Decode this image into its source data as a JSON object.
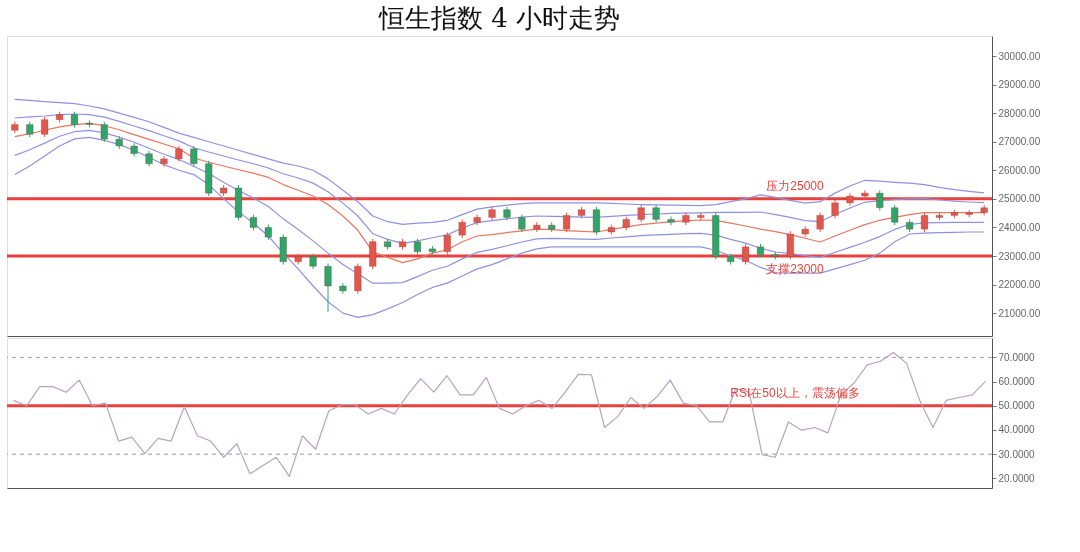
{
  "chart_data": [
    {
      "type": "candlestick",
      "title": "恒生指数 4 小时走势",
      "categories": [
        null,
        null,
        null,
        null,
        null,
        null,
        null,
        null,
        null,
        null,
        null,
        null,
        null,
        null,
        null,
        null,
        null,
        null,
        null,
        null,
        null,
        null,
        null,
        null,
        null,
        null,
        null,
        null,
        null,
        null,
        null,
        null,
        null,
        null,
        null,
        null,
        null,
        null,
        null,
        null,
        null,
        null,
        null,
        null,
        null,
        null,
        null,
        null,
        null,
        null,
        null,
        null,
        null,
        null,
        null,
        null,
        null,
        null,
        null,
        null,
        null,
        null,
        null,
        null,
        null,
        null
      ],
      "ohlc": [
        [
          27400,
          27700,
          27300,
          27600
        ],
        [
          27600,
          27700,
          27160,
          27260
        ],
        [
          27260,
          27870,
          27160,
          27770
        ],
        [
          27770,
          28050,
          27670,
          27950
        ],
        [
          27950,
          28050,
          27500,
          27600
        ],
        [
          27650,
          27750,
          27500,
          27600
        ],
        [
          27600,
          27700,
          26990,
          27090
        ],
        [
          27090,
          27190,
          26750,
          26850
        ],
        [
          26850,
          26950,
          26480,
          26580
        ],
        [
          26580,
          26680,
          26130,
          26230
        ],
        [
          26230,
          26500,
          26130,
          26400
        ],
        [
          26400,
          26850,
          26300,
          26750
        ],
        [
          26750,
          26850,
          26130,
          26230
        ],
        [
          26230,
          26330,
          25100,
          25200
        ],
        [
          25200,
          25480,
          25100,
          25380
        ],
        [
          25380,
          25480,
          24250,
          24350
        ],
        [
          24350,
          24450,
          23900,
          24000
        ],
        [
          24000,
          24100,
          23560,
          23660
        ],
        [
          23660,
          23760,
          22700,
          22800
        ],
        [
          22800,
          23080,
          22700,
          22980
        ],
        [
          22980,
          23080,
          22540,
          22640
        ],
        [
          22640,
          22740,
          21050,
          21950
        ],
        [
          21950,
          22050,
          21680,
          21780
        ],
        [
          21780,
          22740,
          21680,
          22640
        ],
        [
          22640,
          23600,
          22540,
          23500
        ],
        [
          23500,
          23600,
          23220,
          23320
        ],
        [
          23320,
          23600,
          23220,
          23500
        ],
        [
          23500,
          23600,
          23050,
          23150
        ],
        [
          23250,
          23350,
          23050,
          23150
        ],
        [
          23150,
          23830,
          23050,
          23730
        ],
        [
          23730,
          24280,
          23630,
          24180
        ],
        [
          24180,
          24450,
          24080,
          24350
        ],
        [
          24350,
          24720,
          24250,
          24620
        ],
        [
          24620,
          24720,
          24250,
          24350
        ],
        [
          24350,
          24450,
          23840,
          23940
        ],
        [
          23940,
          24180,
          23840,
          24080
        ],
        [
          24080,
          24180,
          23840,
          23940
        ],
        [
          23940,
          24520,
          23840,
          24420
        ],
        [
          24420,
          24720,
          24320,
          24620
        ],
        [
          24620,
          24720,
          23740,
          23840
        ],
        [
          23840,
          24100,
          23740,
          24000
        ],
        [
          24000,
          24380,
          23900,
          24280
        ],
        [
          24280,
          24790,
          24180,
          24690
        ],
        [
          24690,
          24790,
          24180,
          24280
        ],
        [
          24280,
          24380,
          24080,
          24180
        ],
        [
          24180,
          24520,
          24080,
          24420
        ],
        [
          24350,
          24520,
          24250,
          24420
        ],
        [
          24420,
          24520,
          22880,
          22980
        ],
        [
          22980,
          23080,
          22700,
          22800
        ],
        [
          22800,
          23420,
          22700,
          23320
        ],
        [
          23320,
          23420,
          22950,
          23050
        ],
        [
          23050,
          23150,
          22880,
          22980
        ],
        [
          22980,
          23870,
          22880,
          23770
        ],
        [
          23770,
          24040,
          23670,
          23940
        ],
        [
          23940,
          24520,
          23840,
          24420
        ],
        [
          24420,
          24960,
          24320,
          24860
        ],
        [
          24860,
          25200,
          24760,
          25100
        ],
        [
          25100,
          25300,
          25000,
          25200
        ],
        [
          25200,
          25300,
          24590,
          24690
        ],
        [
          24690,
          24790,
          24080,
          24180
        ],
        [
          24180,
          24280,
          23840,
          23940
        ],
        [
          23940,
          24520,
          23840,
          24420
        ],
        [
          24350,
          24520,
          24250,
          24420
        ],
        [
          24420,
          24620,
          24320,
          24520
        ],
        [
          24450,
          24620,
          24350,
          24520
        ],
        [
          24520,
          24790,
          24420,
          24690
        ]
      ],
      "colors": [
        "#e2574c",
        "#2fa56a",
        "#e2574c",
        "#e2574c",
        "#2fa56a",
        "#2fa56a",
        "#2fa56a",
        "#2fa56a",
        "#2fa56a",
        "#2fa56a",
        "#e2574c",
        "#e2574c",
        "#2fa56a",
        "#2fa56a",
        "#e2574c",
        "#2fa56a",
        "#2fa56a",
        "#2fa56a",
        "#2fa56a",
        "#e2574c",
        "#2fa56a",
        "#2fa56a",
        "#2fa56a",
        "#e2574c",
        "#e2574c",
        "#2fa56a",
        "#e2574c",
        "#2fa56a",
        "#2fa56a",
        "#e2574c",
        "#e2574c",
        "#e2574c",
        "#e2574c",
        "#2fa56a",
        "#2fa56a",
        "#e2574c",
        "#2fa56a",
        "#e2574c",
        "#e2574c",
        "#2fa56a",
        "#e2574c",
        "#e2574c",
        "#e2574c",
        "#2fa56a",
        "#2fa56a",
        "#e2574c",
        "#e2574c",
        "#2fa56a",
        "#2fa56a",
        "#e2574c",
        "#2fa56a",
        "#2fa56a",
        "#e2574c",
        "#e2574c",
        "#e2574c",
        "#e2574c",
        "#e2574c",
        "#e2574c",
        "#2fa56a",
        "#2fa56a",
        "#2fa56a",
        "#e2574c",
        "#e2574c",
        "#e2574c",
        "#e2574c",
        "#e2574c"
      ],
      "series": [
        {
          "type": "line",
          "color": "#8f92e0",
          "values": [
            28480,
            28450,
            28400,
            28370,
            28330,
            28250,
            28150,
            28000,
            27850,
            27700,
            27500,
            27300,
            27150,
            27000,
            26850,
            26700,
            26550,
            26400,
            26250,
            26150,
            26000,
            25700,
            25300,
            24900,
            24400,
            24200,
            24110,
            24150,
            24180,
            24250,
            24450,
            24640,
            24720,
            24780,
            24830,
            24860,
            24860,
            24860,
            24860,
            24860,
            24840,
            24820,
            24800,
            24790,
            24780,
            24770,
            24760,
            24800,
            24900,
            25000,
            25140,
            25050,
            24950,
            24850,
            24900,
            25200,
            25450,
            25650,
            25620,
            25580,
            25550,
            25500,
            25400,
            25320,
            25260,
            25210
          ]
        },
        {
          "type": "line",
          "color": "#8f92e0",
          "values": [
            27830,
            27870,
            27900,
            27950,
            27970,
            27950,
            27860,
            27710,
            27550,
            27390,
            27210,
            27030,
            26790,
            26640,
            26500,
            26360,
            26230,
            26080,
            25880,
            25730,
            25550,
            25250,
            24850,
            24400,
            23780,
            23580,
            23440,
            23530,
            23640,
            23740,
            23980,
            24170,
            24240,
            24300,
            24360,
            24400,
            24390,
            24380,
            24360,
            24350,
            24390,
            24420,
            24450,
            24470,
            24490,
            24500,
            24510,
            24530,
            24530,
            24530,
            24540,
            24450,
            24350,
            24240,
            24200,
            24450,
            24680,
            24880,
            24940,
            24970,
            25000,
            25010,
            24960,
            24920,
            24890,
            24870
          ]
        },
        {
          "type": "line",
          "color": "#e8775e",
          "values": [
            27180,
            27280,
            27400,
            27520,
            27600,
            27640,
            27560,
            27420,
            27250,
            27080,
            26920,
            26750,
            26430,
            26280,
            26150,
            26020,
            25900,
            25750,
            25500,
            25300,
            25100,
            24800,
            24400,
            23900,
            23150,
            22950,
            22770,
            22900,
            23100,
            23220,
            23500,
            23700,
            23750,
            23820,
            23880,
            23940,
            23920,
            23890,
            23860,
            23840,
            23930,
            24020,
            24100,
            24150,
            24200,
            24230,
            24260,
            24250,
            24150,
            24050,
            23940,
            23850,
            23750,
            23620,
            23490,
            23700,
            23900,
            24100,
            24250,
            24350,
            24450,
            24520,
            24520,
            24520,
            24520,
            24520
          ]
        },
        {
          "type": "line",
          "color": "#8f92e0",
          "values": [
            26520,
            26720,
            26950,
            27190,
            27350,
            27400,
            27310,
            27160,
            26980,
            26770,
            26560,
            26380,
            26140,
            25890,
            25580,
            25290,
            25030,
            24730,
            24300,
            23930,
            23530,
            23100,
            22700,
            22380,
            22050,
            22050,
            22070,
            22280,
            22500,
            22640,
            22900,
            23130,
            23230,
            23360,
            23490,
            23600,
            23620,
            23610,
            23590,
            23580,
            23630,
            23670,
            23710,
            23740,
            23760,
            23780,
            23790,
            23730,
            23580,
            23450,
            23270,
            23140,
            23080,
            23010,
            22950,
            23130,
            23300,
            23480,
            23680,
            23930,
            24110,
            24160,
            24170,
            24180,
            24180,
            24180
          ]
        },
        {
          "type": "line",
          "color": "#8f92e0",
          "values": [
            25850,
            26150,
            26500,
            26850,
            27100,
            27150,
            27050,
            26900,
            26700,
            26450,
            26200,
            26000,
            25850,
            25500,
            25000,
            24550,
            24150,
            23700,
            23100,
            22550,
            21950,
            21400,
            21000,
            20850,
            20950,
            21150,
            21370,
            21650,
            21900,
            22050,
            22300,
            22550,
            22700,
            22900,
            23100,
            23250,
            23320,
            23320,
            23320,
            23320,
            23320,
            23320,
            23320,
            23320,
            23320,
            23320,
            23320,
            23200,
            23000,
            22850,
            22600,
            22420,
            22400,
            22400,
            22400,
            22550,
            22700,
            22850,
            23100,
            23500,
            23770,
            23800,
            23820,
            23830,
            23840,
            23840
          ]
        }
      ],
      "ylim": [
        20200,
        30700
      ],
      "yticks": [
        {
          "value": 21000,
          "label": "21000.00"
        },
        {
          "value": 22000,
          "label": "22000.00"
        },
        {
          "value": 23000,
          "label": "23000.00"
        },
        {
          "value": 24000,
          "label": "24000.00"
        },
        {
          "value": 25000,
          "label": "25000.00"
        },
        {
          "value": 26000,
          "label": "26000.00"
        },
        {
          "value": 27000,
          "label": "27000.00"
        },
        {
          "value": 28000,
          "label": "28000.00"
        },
        {
          "value": 29000,
          "label": "29000.00"
        },
        {
          "value": 30000,
          "label": "30000.00"
        }
      ],
      "ref_lines": [
        {
          "axis": "y",
          "value": 25000,
          "label": "压力25000",
          "color": "#e8413c"
        },
        {
          "axis": "y",
          "value": 23000,
          "label": "支撑23000",
          "color": "#e8413c"
        }
      ],
      "tick_labels": "y",
      "grid": false,
      "legend": false
    },
    {
      "type": "line",
      "categories": [
        null,
        null,
        null,
        null,
        null,
        null,
        null,
        null,
        null,
        null,
        null,
        null,
        null,
        null,
        null,
        null,
        null,
        null,
        null,
        null,
        null,
        null,
        null,
        null,
        null,
        null,
        null,
        null,
        null,
        null,
        null,
        null,
        null,
        null,
        null,
        null,
        null,
        null,
        null,
        null,
        null,
        null,
        null,
        null,
        null,
        null,
        null,
        null,
        null,
        null,
        null,
        null,
        null,
        null,
        null,
        null,
        null,
        null,
        null,
        null,
        null,
        null,
        null,
        null,
        null,
        null,
        null,
        null,
        null,
        null,
        null,
        null,
        null,
        null,
        null
      ],
      "series": [
        {
          "color": "#b8a3bd",
          "values": [
            52.2,
            50,
            57.9,
            57.9,
            55.6,
            60.6,
            50,
            51.1,
            35.4,
            37,
            30.2,
            36.5,
            35.4,
            49.6,
            37.6,
            35.4,
            28.7,
            34.3,
            21.9,
            25.3,
            28.7,
            20.8,
            37.6,
            32,
            47.8,
            50.4,
            50.4,
            46.6,
            48.9,
            46.6,
            54.5,
            61.2,
            55.6,
            62.4,
            54.5,
            54.5,
            61.7,
            48.9,
            46.6,
            50,
            52.2,
            48.9,
            55.6,
            63,
            62.8,
            41,
            45.5,
            53.4,
            48.9,
            53.8,
            60.6,
            51.1,
            50,
            43.3,
            43.3,
            57.2,
            55.6,
            29.8,
            28.7,
            43.3,
            39.9,
            41,
            38.8,
            54.5,
            59.4,
            66.9,
            68.4,
            72,
            67.5,
            52.2,
            41,
            52.2,
            53.4,
            54.5,
            60.1
          ]
        }
      ],
      "ylim": [
        16,
        78
      ],
      "yticks": [
        {
          "value": 20,
          "label": "20.0000"
        },
        {
          "value": 30,
          "label": "30.0000"
        },
        {
          "value": 40,
          "label": "40.0000"
        },
        {
          "value": 50,
          "label": "50.0000"
        },
        {
          "value": 60,
          "label": "60.0000"
        },
        {
          "value": 70,
          "label": "70.0000"
        }
      ],
      "ref_lines": [
        {
          "axis": "y",
          "value": 70,
          "color": "#9a9a9a",
          "line_style": "dashed"
        },
        {
          "axis": "y",
          "value": 30,
          "color": "#9a9a9a",
          "line_style": "dashed"
        },
        {
          "axis": "y",
          "value": 50,
          "label": "RSI在50以上，震荡偏多",
          "color": "#e8413c"
        }
      ],
      "tick_labels": "y",
      "grid": false,
      "legend": false
    }
  ]
}
